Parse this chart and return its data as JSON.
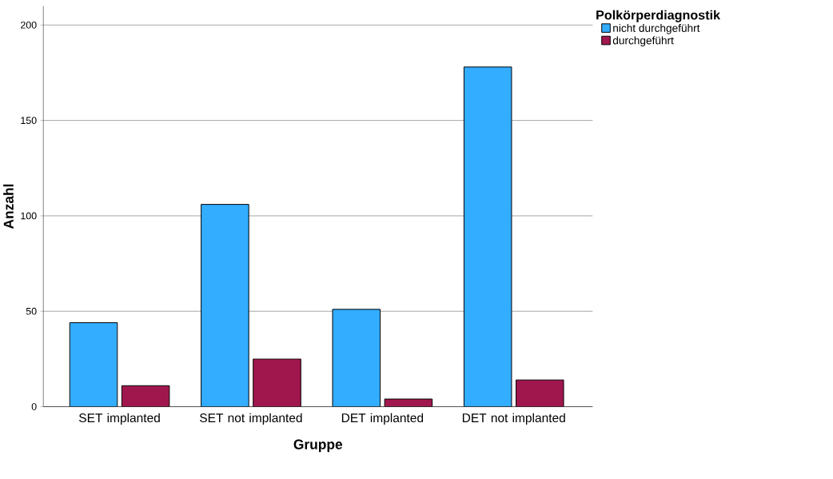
{
  "chart_data": {
    "type": "bar",
    "xlabel": "Gruppe",
    "ylabel": "Anzahl",
    "legend_title": "Polkörperdiagnostik",
    "categories": [
      "SET implanted",
      "SET not implanted",
      "DET implanted",
      "DET not implanted"
    ],
    "series": [
      {
        "name": "nicht durchgeführt",
        "color": "#33adff",
        "values": [
          44,
          106,
          51,
          178
        ]
      },
      {
        "name": "durchgeführt",
        "color": "#a0174d",
        "values": [
          11,
          25,
          4,
          14
        ]
      }
    ],
    "ylim": [
      0,
      210
    ],
    "yticks": [
      0,
      50,
      100,
      150,
      200
    ],
    "grid": "y",
    "legend": "top right"
  }
}
